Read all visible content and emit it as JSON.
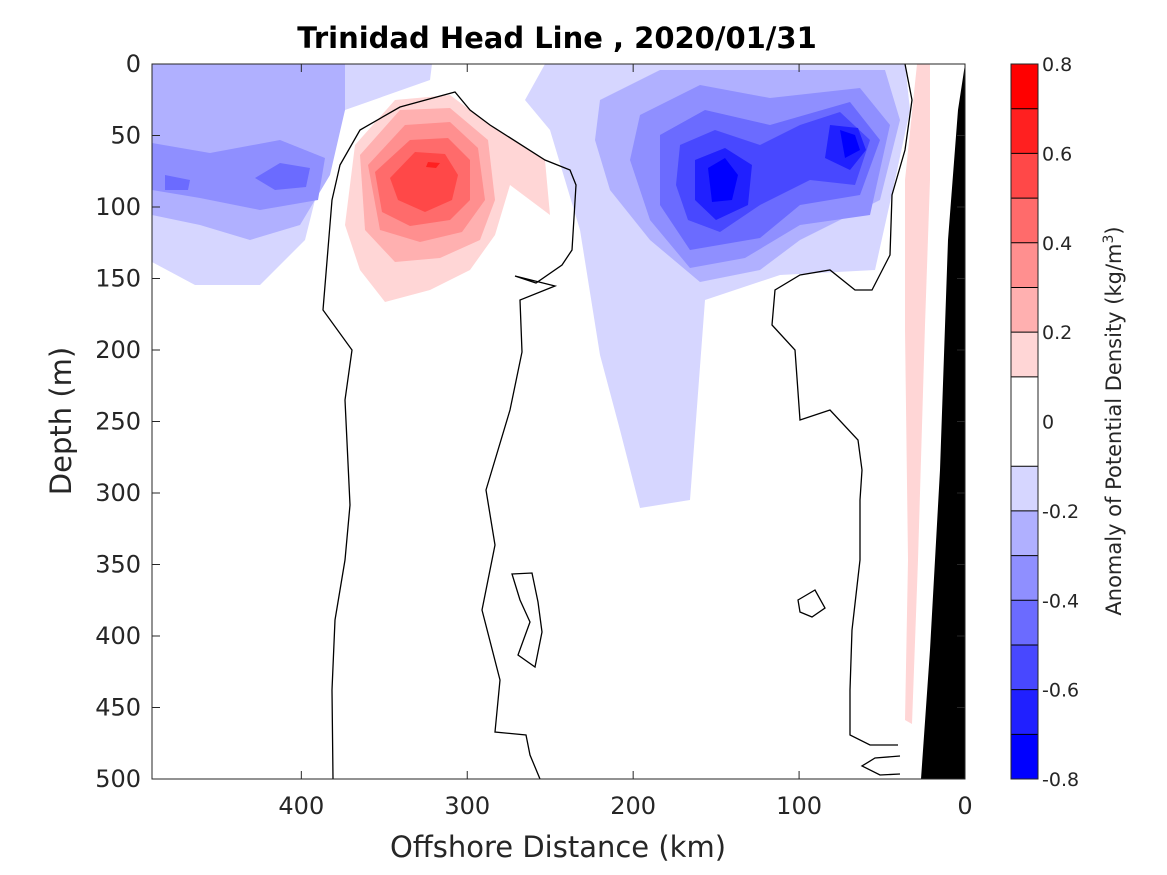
{
  "chart_data": {
    "type": "heatmap",
    "title": "Trinidad Head Line , 2020/01/31",
    "xlabel": "Offshore Distance (km)",
    "ylabel": "Depth (m)",
    "xlim": [
      490,
      0
    ],
    "ylim": [
      500,
      0
    ],
    "x_ticks": [
      "400",
      "300",
      "200",
      "100",
      "0"
    ],
    "y_ticks": [
      "0",
      "50",
      "100",
      "150",
      "200",
      "250",
      "300",
      "350",
      "400",
      "450",
      "500"
    ],
    "colorbar": {
      "label_prefix": "Anomaly of Potential Density (kg/m",
      "label_sup": "3",
      "label_suffix": ")",
      "range": [
        -0.8,
        0.8
      ],
      "ticks": [
        "-0.8",
        "-0.6",
        "-0.4",
        "-0.2",
        "0",
        "0.2",
        "0.4",
        "0.6",
        "0.8"
      ],
      "levels": [
        -0.8,
        -0.7,
        -0.6,
        -0.5,
        -0.4,
        -0.3,
        -0.2,
        -0.1,
        0.1,
        0.2,
        0.3,
        0.4,
        0.5,
        0.6,
        0.7,
        0.8
      ],
      "colors": [
        "#0000ff",
        "#2020ff",
        "#4848ff",
        "#6b6bff",
        "#8f8fff",
        "#b0b0ff",
        "#d6d6ff",
        "#ffffff",
        "#ffd6d6",
        "#ffb0b0",
        "#ff8f8f",
        "#ff6b6b",
        "#ff4848",
        "#ff2020",
        "#ff0000"
      ]
    },
    "features": [
      {
        "name": "negative anomaly, offshore upper layer",
        "x": 440,
        "depth": 75,
        "peak": -0.35
      },
      {
        "name": "positive anomaly eddy",
        "x": 322,
        "depth": 75,
        "peak": 0.65
      },
      {
        "name": "negative anomaly core",
        "x": 150,
        "depth": 75,
        "peak": -0.75
      },
      {
        "name": "negative anomaly core",
        "x": 72,
        "depth": 55,
        "peak": -0.65
      },
      {
        "name": "positive anomaly, nearshore",
        "x": 25,
        "depth": 200,
        "peak": 0.2
      }
    ],
    "bathymetry_color": "#000000",
    "zero_contour_color": "#000000"
  }
}
